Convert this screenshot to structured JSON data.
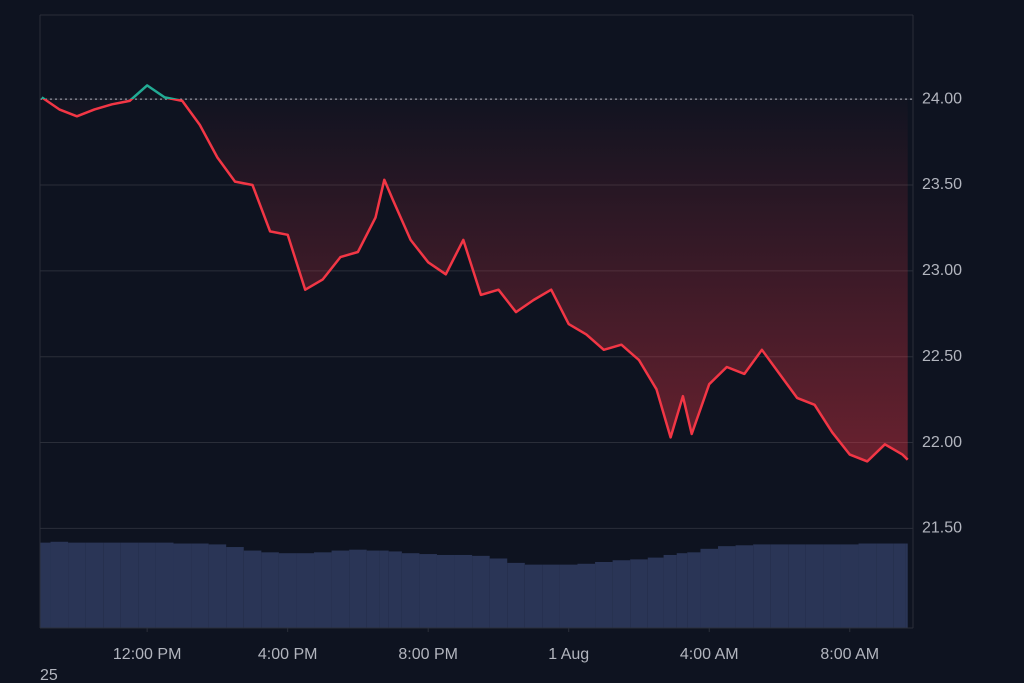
{
  "chart_data": {
    "type": "line",
    "x": [
      9.0,
      9.5,
      10.0,
      10.5,
      11.0,
      11.5,
      12.0,
      12.5,
      13.0,
      13.5,
      14.0,
      14.5,
      15.0,
      15.5,
      16.0,
      16.5,
      17.0,
      17.5,
      18.0,
      18.5,
      18.75,
      19.0,
      19.5,
      20.0,
      20.5,
      21.0,
      21.5,
      22.0,
      22.5,
      23.0,
      23.5,
      24.0,
      24.5,
      25.0,
      25.5,
      26.0,
      26.5,
      26.9,
      27.25,
      27.5,
      28.0,
      28.5,
      29.0,
      29.5,
      30.0,
      30.5,
      31.0,
      31.5,
      32.0,
      32.5,
      33.0,
      33.5,
      33.65
    ],
    "series": [
      {
        "values": [
          24.01,
          23.94,
          23.9,
          23.94,
          23.97,
          23.99,
          24.08,
          24.01,
          23.99,
          23.85,
          23.66,
          23.52,
          23.5,
          23.23,
          23.21,
          22.89,
          22.95,
          23.08,
          23.11,
          23.31,
          23.53,
          23.41,
          23.18,
          23.05,
          22.98,
          23.18,
          22.86,
          22.89,
          22.76,
          22.83,
          22.89,
          22.69,
          22.63,
          22.54,
          22.57,
          22.48,
          22.31,
          22.03,
          22.27,
          22.05,
          22.34,
          22.44,
          22.4,
          22.54,
          22.4,
          22.26,
          22.22,
          22.06,
          21.93,
          21.89,
          21.99,
          21.93,
          21.9
        ],
        "volumes": [
          97,
          98,
          97,
          97,
          97,
          97,
          97,
          97,
          96,
          96,
          95,
          92,
          88,
          86,
          85,
          85,
          86,
          88,
          89,
          88,
          88,
          87,
          85,
          84,
          83,
          83,
          82,
          79,
          74,
          72,
          72,
          72,
          73,
          75,
          77,
          78,
          80,
          83,
          85,
          86,
          90,
          93,
          94,
          95,
          95,
          95,
          95,
          95,
          95,
          96,
          96,
          96,
          96
        ]
      }
    ],
    "up_color": "#22ab94",
    "down_color": "#f23645",
    "volume_color": "#2a3556",
    "baseline": 24,
    "xlim": [
      8.95,
      33.8
    ],
    "ylim": [
      20.92,
      24.49
    ],
    "volume_lim": [
      0,
      100
    ],
    "xticks": [
      {
        "value": 12,
        "label": "12:00 PM"
      },
      {
        "value": 16,
        "label": "4:00 PM"
      },
      {
        "value": 20,
        "label": "8:00 PM"
      },
      {
        "value": 24,
        "label": "1 Aug"
      },
      {
        "value": 28,
        "label": "4:00 AM"
      },
      {
        "value": 32,
        "label": "8:00 AM"
      }
    ],
    "yticks": [
      {
        "value": 24,
        "label": "24.00"
      },
      {
        "value": 23.5,
        "label": "23.50"
      },
      {
        "value": 23,
        "label": "23.00"
      },
      {
        "value": 22.5,
        "label": "22.50"
      },
      {
        "value": 22,
        "label": "22.00"
      },
      {
        "value": 21.5,
        "label": "21.50"
      }
    ],
    "grid": true,
    "corner_label": "25"
  }
}
